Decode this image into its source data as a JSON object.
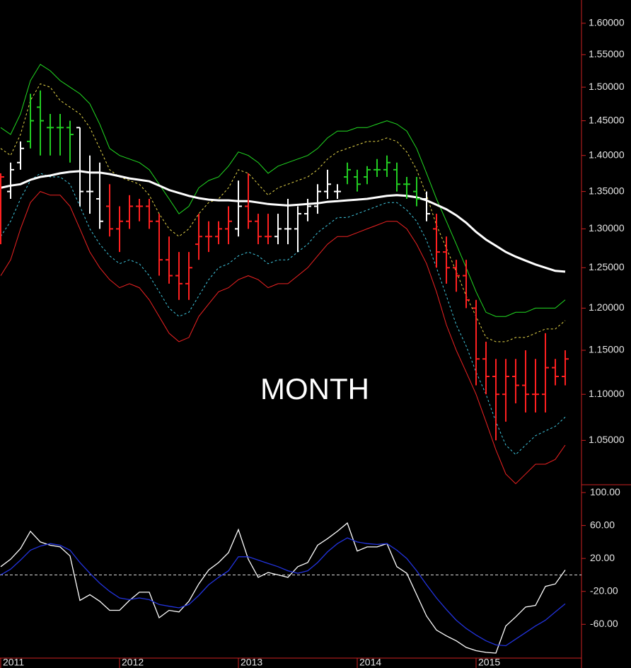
{
  "chart_data": {
    "type": "ohlc",
    "annotation": "MONTH",
    "log_scale": true,
    "categories": [
      "2011",
      null,
      null,
      null,
      null,
      null,
      null,
      null,
      null,
      null,
      null,
      null,
      "2012",
      null,
      null,
      null,
      null,
      null,
      null,
      null,
      null,
      null,
      null,
      null,
      "2013",
      null,
      null,
      null,
      null,
      null,
      null,
      null,
      null,
      null,
      null,
      null,
      "2014",
      null,
      null,
      null,
      null,
      null,
      null,
      null,
      null,
      null,
      null,
      null,
      "2015",
      null,
      null,
      null,
      null,
      null,
      null,
      null,
      null,
      null
    ],
    "open": [
      1.36,
      1.35,
      1.39,
      1.42,
      1.47,
      1.44,
      1.44,
      1.44,
      1.44,
      1.35,
      1.34,
      1.33,
      1.3,
      1.31,
      1.33,
      1.33,
      1.31,
      1.26,
      1.24,
      1.23,
      1.28,
      1.29,
      1.29,
      1.3,
      1.3,
      1.33,
      1.31,
      1.29,
      1.29,
      1.3,
      1.3,
      1.32,
      1.33,
      1.35,
      1.35,
      1.37,
      1.37,
      1.37,
      1.38,
      1.38,
      1.38,
      1.36,
      1.35,
      1.34,
      1.3,
      1.27,
      1.25,
      1.24,
      1.2,
      1.14,
      1.12,
      1.1,
      1.12,
      1.11,
      1.1,
      1.1,
      1.13,
      1.12
    ],
    "high": [
      1.375,
      1.39,
      1.42,
      1.49,
      1.495,
      1.46,
      1.46,
      1.45,
      1.44,
      1.4,
      1.39,
      1.36,
      1.33,
      1.345,
      1.34,
      1.34,
      1.32,
      1.29,
      1.27,
      1.27,
      1.32,
      1.31,
      1.31,
      1.33,
      1.365,
      1.375,
      1.32,
      1.32,
      1.32,
      1.34,
      1.33,
      1.34,
      1.36,
      1.38,
      1.36,
      1.39,
      1.38,
      1.385,
      1.395,
      1.4,
      1.39,
      1.37,
      1.37,
      1.35,
      1.32,
      1.29,
      1.26,
      1.26,
      1.21,
      1.16,
      1.14,
      1.14,
      1.14,
      1.15,
      1.14,
      1.17,
      1.14,
      1.15
    ],
    "low": [
      1.28,
      1.34,
      1.38,
      1.41,
      1.4,
      1.4,
      1.4,
      1.39,
      1.33,
      1.32,
      1.3,
      1.29,
      1.27,
      1.3,
      1.31,
      1.3,
      1.24,
      1.23,
      1.21,
      1.21,
      1.26,
      1.27,
      1.28,
      1.28,
      1.29,
      1.3,
      1.28,
      1.28,
      1.28,
      1.28,
      1.27,
      1.31,
      1.32,
      1.34,
      1.34,
      1.36,
      1.35,
      1.36,
      1.37,
      1.37,
      1.35,
      1.34,
      1.33,
      1.31,
      1.25,
      1.23,
      1.22,
      1.2,
      1.11,
      1.1,
      1.05,
      1.07,
      1.09,
      1.08,
      1.08,
      1.08,
      1.11,
      1.11
    ],
    "close": [
      1.37,
      1.38,
      1.41,
      1.45,
      1.45,
      1.44,
      1.44,
      1.43,
      1.35,
      1.35,
      1.31,
      1.3,
      1.31,
      1.33,
      1.33,
      1.31,
      1.26,
      1.24,
      1.23,
      1.25,
      1.29,
      1.29,
      1.3,
      1.31,
      1.33,
      1.31,
      1.29,
      1.29,
      1.3,
      1.3,
      1.32,
      1.33,
      1.35,
      1.36,
      1.35,
      1.38,
      1.36,
      1.38,
      1.38,
      1.39,
      1.36,
      1.36,
      1.34,
      1.32,
      1.27,
      1.25,
      1.24,
      1.21,
      1.14,
      1.12,
      1.1,
      1.12,
      1.11,
      1.1,
      1.1,
      1.13,
      1.12,
      1.14
    ],
    "bar_colors": [
      "#ff2020",
      "#ffffff",
      "#ffffff",
      "#22cc22",
      "#22cc22",
      "#22cc22",
      "#22cc22",
      "#22cc22",
      "#ffffff",
      "#ffffff",
      "#ffffff",
      "#ff2020",
      "#ff2020",
      "#ff2020",
      "#ff2020",
      "#ff2020",
      "#ff2020",
      "#ff2020",
      "#ff2020",
      "#ff2020",
      "#ff2020",
      "#ff2020",
      "#ff2020",
      "#ff2020",
      "#ffffff",
      "#ff2020",
      "#ff2020",
      "#ff2020",
      "#ffffff",
      "#ffffff",
      "#ffffff",
      "#ffffff",
      "#ffffff",
      "#ffffff",
      "#ffffff",
      "#22cc22",
      "#22cc22",
      "#22cc22",
      "#22cc22",
      "#22cc22",
      "#22cc22",
      "#22cc22",
      "#22cc22",
      "#ffffff",
      "#ff2020",
      "#ff2020",
      "#ff2020",
      "#ff2020",
      "#ff2020",
      "#ff2020",
      "#ff2020",
      "#ff2020",
      "#ff2020",
      "#ff2020",
      "#ff2020",
      "#ff2020",
      "#ff2020",
      "#ff2020"
    ],
    "series": [
      {
        "color": "#22dd22",
        "dashed": false,
        "width": 1,
        "values": [
          1.44,
          1.43,
          1.46,
          1.51,
          1.535,
          1.525,
          1.51,
          1.5,
          1.49,
          1.475,
          1.445,
          1.41,
          1.4,
          1.395,
          1.39,
          1.38,
          1.36,
          1.34,
          1.32,
          1.33,
          1.355,
          1.365,
          1.37,
          1.385,
          1.405,
          1.4,
          1.39,
          1.375,
          1.385,
          1.39,
          1.395,
          1.4,
          1.41,
          1.425,
          1.435,
          1.435,
          1.44,
          1.44,
          1.445,
          1.45,
          1.445,
          1.435,
          1.41,
          1.375,
          1.34,
          1.31,
          1.28,
          1.25,
          1.22,
          1.195,
          1.19,
          1.19,
          1.195,
          1.195,
          1.2,
          1.2,
          1.2,
          1.21
        ]
      },
      {
        "color": "#e8d84a",
        "dashed": true,
        "width": 1,
        "values": [
          1.41,
          1.4,
          1.43,
          1.48,
          1.505,
          1.5,
          1.48,
          1.47,
          1.46,
          1.44,
          1.41,
          1.38,
          1.37,
          1.365,
          1.36,
          1.345,
          1.32,
          1.3,
          1.29,
          1.3,
          1.32,
          1.335,
          1.34,
          1.355,
          1.38,
          1.375,
          1.36,
          1.345,
          1.355,
          1.36,
          1.365,
          1.37,
          1.38,
          1.395,
          1.405,
          1.41,
          1.415,
          1.42,
          1.42,
          1.425,
          1.42,
          1.405,
          1.38,
          1.345,
          1.305,
          1.275,
          1.245,
          1.215,
          1.19,
          1.165,
          1.16,
          1.16,
          1.165,
          1.165,
          1.17,
          1.175,
          1.175,
          1.185
        ]
      },
      {
        "color": "#40c8e0",
        "dashed": true,
        "width": 1,
        "values": [
          1.29,
          1.31,
          1.34,
          1.365,
          1.375,
          1.37,
          1.37,
          1.36,
          1.33,
          1.3,
          1.28,
          1.265,
          1.255,
          1.26,
          1.255,
          1.24,
          1.22,
          1.2,
          1.19,
          1.195,
          1.215,
          1.235,
          1.25,
          1.255,
          1.265,
          1.27,
          1.265,
          1.255,
          1.26,
          1.26,
          1.27,
          1.28,
          1.295,
          1.305,
          1.315,
          1.315,
          1.32,
          1.325,
          1.33,
          1.335,
          1.335,
          1.325,
          1.31,
          1.285,
          1.25,
          1.215,
          1.18,
          1.155,
          1.125,
          1.1,
          1.07,
          1.045,
          1.035,
          1.045,
          1.055,
          1.06,
          1.065,
          1.075
        ]
      },
      {
        "color": "#ee2222",
        "dashed": false,
        "width": 1,
        "values": [
          1.24,
          1.26,
          1.3,
          1.335,
          1.35,
          1.345,
          1.345,
          1.33,
          1.3,
          1.27,
          1.25,
          1.235,
          1.225,
          1.23,
          1.225,
          1.21,
          1.19,
          1.17,
          1.16,
          1.165,
          1.19,
          1.205,
          1.22,
          1.225,
          1.235,
          1.24,
          1.235,
          1.225,
          1.23,
          1.23,
          1.24,
          1.25,
          1.265,
          1.28,
          1.29,
          1.29,
          1.295,
          1.3,
          1.305,
          1.31,
          1.31,
          1.3,
          1.28,
          1.255,
          1.22,
          1.18,
          1.15,
          1.125,
          1.1,
          1.07,
          1.04,
          1.015,
          1.005,
          1.015,
          1.025,
          1.025,
          1.03,
          1.045
        ]
      },
      {
        "color": "#ffffff",
        "dashed": false,
        "width": 3,
        "values": [
          1.355,
          1.358,
          1.36,
          1.366,
          1.37,
          1.372,
          1.375,
          1.377,
          1.378,
          1.376,
          1.376,
          1.374,
          1.371,
          1.368,
          1.366,
          1.364,
          1.358,
          1.352,
          1.348,
          1.344,
          1.341,
          1.339,
          1.338,
          1.338,
          1.337,
          1.337,
          1.335,
          1.333,
          1.332,
          1.331,
          1.332,
          1.333,
          1.334,
          1.336,
          1.337,
          1.338,
          1.339,
          1.34,
          1.342,
          1.344,
          1.345,
          1.344,
          1.342,
          1.338,
          1.332,
          1.326,
          1.318,
          1.308,
          1.296,
          1.286,
          1.278,
          1.27,
          1.264,
          1.259,
          1.254,
          1.25,
          1.246,
          1.245
        ]
      }
    ],
    "ylim": [
      1.004,
      1.638
    ],
    "yticks": [
      {
        "value": 1.6,
        "label": "1.60000"
      },
      {
        "value": 1.55,
        "label": "1.55000"
      },
      {
        "value": 1.5,
        "label": "1.50000"
      },
      {
        "value": 1.45,
        "label": "1.45000"
      },
      {
        "value": 1.4,
        "label": "1.40000"
      },
      {
        "value": 1.35,
        "label": "1.35000"
      },
      {
        "value": 1.3,
        "label": "1.30000"
      },
      {
        "value": 1.25,
        "label": "1.25000"
      },
      {
        "value": 1.2,
        "label": "1.20000"
      },
      {
        "value": 1.15,
        "label": "1.15000"
      },
      {
        "value": 1.1,
        "label": "1.10000"
      },
      {
        "value": 1.05,
        "label": "1.05000"
      }
    ],
    "lower_panel": {
      "type": "line",
      "reference_line": 0,
      "series": [
        {
          "color": "#ffffff",
          "values": [
            10,
            19,
            32,
            53,
            40,
            36,
            34,
            23,
            -31,
            -24,
            -32,
            -43,
            -43,
            -31,
            -21,
            -21,
            -52,
            -43,
            -45,
            -32,
            -11,
            6,
            15,
            27,
            55,
            19,
            -3,
            3,
            0,
            -3,
            10,
            15,
            36,
            44,
            53,
            63,
            29,
            34,
            34,
            38,
            10,
            2,
            -24,
            -50,
            -67,
            -74,
            -80,
            -88,
            -92,
            -94,
            -95,
            -62,
            -51,
            -39,
            -37,
            -14,
            -11,
            6
          ]
        },
        {
          "color": "#2233dd",
          "values": [
            0,
            7,
            18,
            30,
            35,
            38,
            36,
            30,
            15,
            2,
            -10,
            -20,
            -28,
            -30,
            -28,
            -30,
            -36,
            -38,
            -40,
            -36,
            -25,
            -12,
            -3,
            5,
            22,
            22,
            18,
            14,
            10,
            5,
            2,
            5,
            15,
            28,
            38,
            45,
            40,
            38,
            37,
            38,
            30,
            20,
            5,
            -12,
            -28,
            -42,
            -55,
            -65,
            -73,
            -80,
            -85,
            -86,
            -78,
            -70,
            -62,
            -55,
            -45,
            -35
          ]
        }
      ],
      "ylim": [
        -101,
        109.5
      ],
      "yticks": [
        {
          "value": 100,
          "label": "100.00"
        },
        {
          "value": 60,
          "label": "60.00"
        },
        {
          "value": 20,
          "label": "20.00"
        },
        {
          "value": -20,
          "label": "-20.00"
        },
        {
          "value": -60,
          "label": "-60.00"
        }
      ]
    }
  }
}
